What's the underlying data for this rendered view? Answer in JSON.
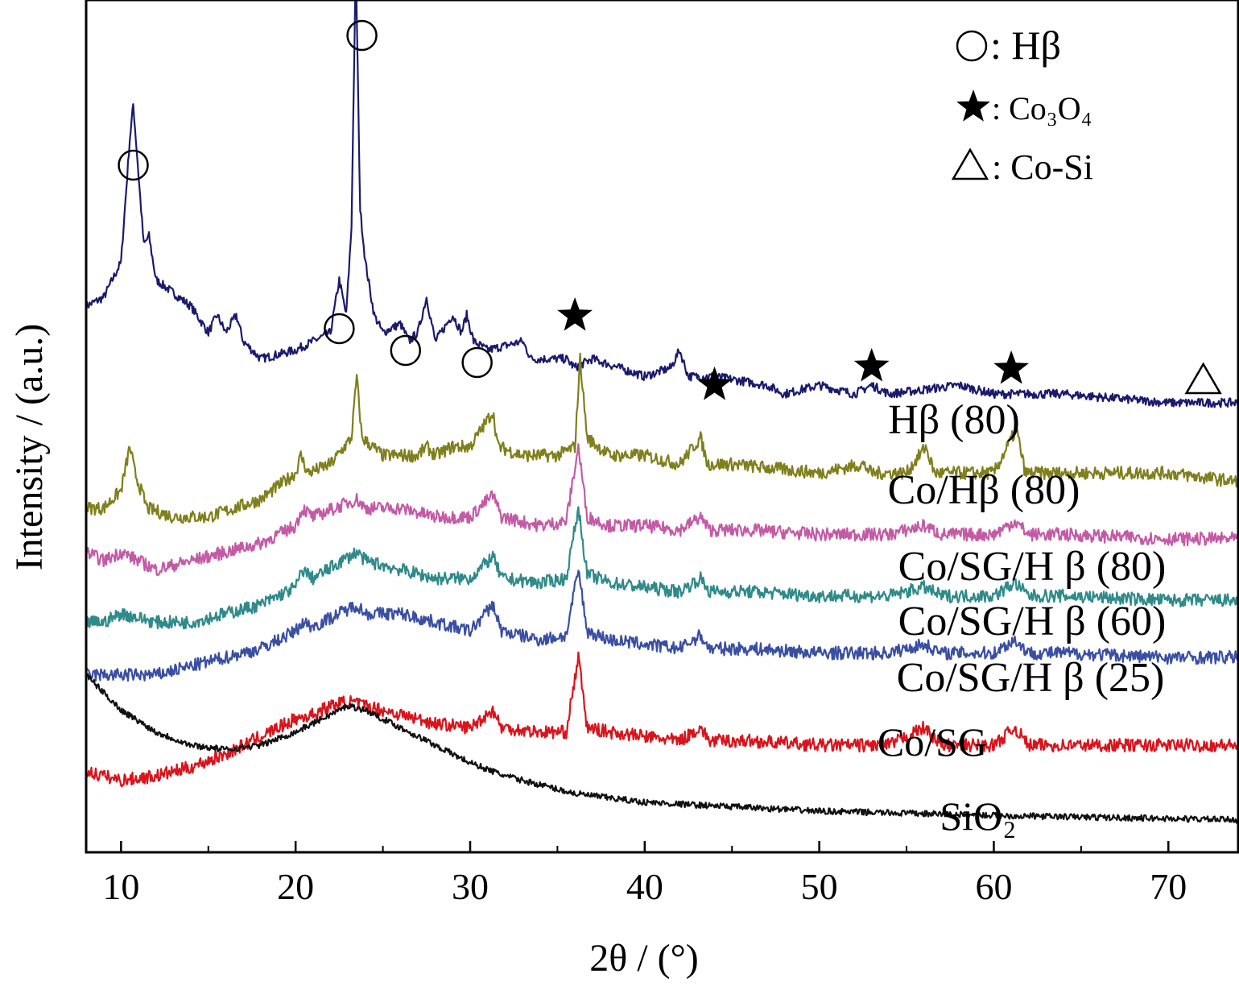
{
  "chart_data": {
    "type": "line",
    "title": "",
    "xlabel": "2θ / (°)",
    "ylabel": "Intensity / (a.u.)",
    "xlim": [
      8,
      74
    ],
    "x_ticks": [
      10,
      20,
      30,
      40,
      50,
      60,
      70
    ],
    "y_ticks_shown": false,
    "grid": false,
    "legend_placement": "top-right",
    "legend": [
      {
        "symbol": "circle",
        "label": ": Hβ"
      },
      {
        "symbol": "star",
        "label": ": Co₃O₄"
      },
      {
        "symbol": "triangle",
        "label": ": Co-Si"
      }
    ],
    "series": [
      {
        "name": "Hβ (80)",
        "color": "#1a1a6e",
        "baseline_intensity": 54,
        "points": [
          [
            8,
            61
          ],
          [
            9,
            62
          ],
          [
            10,
            66
          ],
          [
            10.5,
            80
          ],
          [
            10.7,
            84
          ],
          [
            11,
            76
          ],
          [
            11.3,
            68
          ],
          [
            11.6,
            69
          ],
          [
            12,
            64
          ],
          [
            14,
            61
          ],
          [
            15,
            58
          ],
          [
            15.5,
            60
          ],
          [
            16,
            58
          ],
          [
            16.6,
            60
          ],
          [
            17,
            57
          ],
          [
            18,
            55
          ],
          [
            20,
            56
          ],
          [
            22,
            58
          ],
          [
            22.5,
            64
          ],
          [
            22.9,
            60
          ],
          [
            23.2,
            70
          ],
          [
            23.45,
            100
          ],
          [
            23.7,
            72
          ],
          [
            24,
            66
          ],
          [
            24.5,
            60
          ],
          [
            25,
            58
          ],
          [
            26,
            59
          ],
          [
            26.5,
            57
          ],
          [
            27,
            58
          ],
          [
            27.5,
            62
          ],
          [
            28,
            57
          ],
          [
            29,
            60
          ],
          [
            29.5,
            58
          ],
          [
            29.8,
            60
          ],
          [
            30.2,
            57
          ],
          [
            31,
            56
          ],
          [
            33,
            57
          ],
          [
            33.5,
            55
          ],
          [
            35.5,
            55
          ],
          [
            36,
            54
          ],
          [
            37,
            55
          ],
          [
            40,
            53
          ],
          [
            41.5,
            54
          ],
          [
            42,
            56
          ],
          [
            42.5,
            53
          ],
          [
            44,
            53
          ],
          [
            47,
            52
          ],
          [
            48,
            51
          ],
          [
            50,
            52
          ],
          [
            52,
            51
          ],
          [
            53,
            52
          ],
          [
            54,
            51
          ],
          [
            58,
            52
          ],
          [
            60,
            51
          ],
          [
            63,
            51
          ],
          [
            64,
            51
          ],
          [
            70,
            50
          ],
          [
            74,
            50
          ]
        ]
      },
      {
        "name": "Co/Hβ (80)",
        "color": "#7f7f1c",
        "baseline_intensity": 42,
        "points": [
          [
            8,
            38
          ],
          [
            9,
            38
          ],
          [
            10,
            40
          ],
          [
            10.5,
            45
          ],
          [
            10.8,
            42
          ],
          [
            11.5,
            38
          ],
          [
            13,
            37
          ],
          [
            15,
            37
          ],
          [
            18,
            39
          ],
          [
            20,
            42
          ],
          [
            20.3,
            44
          ],
          [
            20.7,
            42
          ],
          [
            22,
            43
          ],
          [
            23.2,
            46
          ],
          [
            23.5,
            53
          ],
          [
            23.8,
            46
          ],
          [
            25,
            44
          ],
          [
            27,
            44
          ],
          [
            27.5,
            45
          ],
          [
            28,
            44
          ],
          [
            29,
            45
          ],
          [
            30,
            45
          ],
          [
            31.3,
            49
          ],
          [
            31.6,
            45
          ],
          [
            33,
            44
          ],
          [
            35,
            44
          ],
          [
            36,
            45
          ],
          [
            36.3,
            55
          ],
          [
            36.7,
            46
          ],
          [
            38,
            44
          ],
          [
            40,
            44
          ],
          [
            42,
            43
          ],
          [
            43.2,
            46
          ],
          [
            43.6,
            43
          ],
          [
            45,
            43
          ],
          [
            50,
            42
          ],
          [
            52.5,
            43
          ],
          [
            53,
            42
          ],
          [
            55,
            42
          ],
          [
            56.1,
            45
          ],
          [
            56.6,
            42
          ],
          [
            60,
            42
          ],
          [
            61.3,
            47
          ],
          [
            61.8,
            42
          ],
          [
            63,
            42
          ],
          [
            70,
            42
          ],
          [
            74,
            41
          ]
        ]
      },
      {
        "name": "Co/SG/H β (80)",
        "color": "#c45aa6",
        "baseline_intensity": 36,
        "points": [
          [
            8,
            33
          ],
          [
            9,
            32
          ],
          [
            10,
            33
          ],
          [
            12,
            31
          ],
          [
            14,
            32
          ],
          [
            16,
            33
          ],
          [
            18,
            34
          ],
          [
            20,
            36
          ],
          [
            20.4,
            38
          ],
          [
            21,
            37
          ],
          [
            23.5,
            39
          ],
          [
            24,
            38
          ],
          [
            26,
            38
          ],
          [
            28,
            37
          ],
          [
            30,
            37
          ],
          [
            31.3,
            39.5
          ],
          [
            31.8,
            37
          ],
          [
            34,
            36
          ],
          [
            35.5,
            36.5
          ],
          [
            36.2,
            45
          ],
          [
            36.7,
            37
          ],
          [
            38,
            36
          ],
          [
            40,
            36
          ],
          [
            42,
            35.5
          ],
          [
            43.2,
            37
          ],
          [
            43.7,
            35.5
          ],
          [
            46,
            35.5
          ],
          [
            50,
            35
          ],
          [
            54,
            35
          ],
          [
            56,
            36
          ],
          [
            57,
            35
          ],
          [
            60,
            35
          ],
          [
            61.2,
            36.5
          ],
          [
            62,
            35
          ],
          [
            64,
            35
          ],
          [
            70,
            34.5
          ],
          [
            74,
            34.5
          ]
        ]
      },
      {
        "name": "Co/SG/H β (60)",
        "color": "#2f8a8a",
        "baseline_intensity": 29,
        "points": [
          [
            8,
            25
          ],
          [
            9,
            25
          ],
          [
            10,
            26
          ],
          [
            12,
            25
          ],
          [
            14,
            25
          ],
          [
            16,
            26
          ],
          [
            18,
            27
          ],
          [
            20,
            29
          ],
          [
            20.4,
            31
          ],
          [
            21,
            30
          ],
          [
            23.5,
            33
          ],
          [
            24,
            32
          ],
          [
            26,
            31
          ],
          [
            28,
            30
          ],
          [
            30,
            30
          ],
          [
            31.3,
            32.5
          ],
          [
            31.8,
            30
          ],
          [
            34,
            29.5
          ],
          [
            35.5,
            30
          ],
          [
            36.2,
            38
          ],
          [
            36.7,
            30.5
          ],
          [
            38,
            29.5
          ],
          [
            40,
            29
          ],
          [
            42,
            28.5
          ],
          [
            43.2,
            30
          ],
          [
            43.7,
            28.5
          ],
          [
            46,
            28.5
          ],
          [
            50,
            28
          ],
          [
            54,
            28
          ],
          [
            56,
            29
          ],
          [
            57,
            28
          ],
          [
            60,
            28
          ],
          [
            61.2,
            29.5
          ],
          [
            62,
            28
          ],
          [
            64,
            28
          ],
          [
            70,
            27.5
          ],
          [
            74,
            27.5
          ]
        ]
      },
      {
        "name": "Co/SG/H β (25)",
        "color": "#3a4fa3",
        "baseline_intensity": 22,
        "points": [
          [
            8,
            19
          ],
          [
            9,
            19
          ],
          [
            10,
            19
          ],
          [
            12,
            19
          ],
          [
            14,
            20
          ],
          [
            16,
            21
          ],
          [
            18,
            22
          ],
          [
            20,
            24
          ],
          [
            20.4,
            25
          ],
          [
            21,
            24.5
          ],
          [
            23.5,
            27
          ],
          [
            24,
            26
          ],
          [
            26,
            26
          ],
          [
            28,
            25
          ],
          [
            30,
            24
          ],
          [
            31.3,
            27
          ],
          [
            31.8,
            24
          ],
          [
            34,
            23
          ],
          [
            35.5,
            23.5
          ],
          [
            36.2,
            31
          ],
          [
            36.7,
            24
          ],
          [
            38,
            23
          ],
          [
            40,
            22.5
          ],
          [
            42,
            22
          ],
          [
            43.2,
            23.5
          ],
          [
            43.7,
            22
          ],
          [
            46,
            22
          ],
          [
            50,
            21.5
          ],
          [
            54,
            21.5
          ],
          [
            56,
            22.5
          ],
          [
            57,
            21.5
          ],
          [
            60,
            21.5
          ],
          [
            61.2,
            23
          ],
          [
            62,
            21.5
          ],
          [
            64,
            21.5
          ],
          [
            70,
            21
          ],
          [
            74,
            21
          ]
        ]
      },
      {
        "name": "Co/SG",
        "color": "#d9141c",
        "baseline_intensity": 10,
        "points": [
          [
            8,
            8
          ],
          [
            10,
            7
          ],
          [
            12,
            7.5
          ],
          [
            14,
            8.5
          ],
          [
            16,
            10
          ],
          [
            18,
            12
          ],
          [
            20,
            14
          ],
          [
            21,
            14.5
          ],
          [
            22,
            15.5
          ],
          [
            23,
            16
          ],
          [
            24,
            15.5
          ],
          [
            26,
            14.5
          ],
          [
            28,
            13.5
          ],
          [
            30,
            13
          ],
          [
            31.3,
            15
          ],
          [
            31.8,
            13
          ],
          [
            34,
            12.5
          ],
          [
            35.5,
            12.5
          ],
          [
            36.2,
            21
          ],
          [
            36.7,
            13
          ],
          [
            38,
            12.5
          ],
          [
            40,
            12
          ],
          [
            42,
            11.5
          ],
          [
            43.2,
            13
          ],
          [
            43.7,
            11.5
          ],
          [
            46,
            11.5
          ],
          [
            50,
            11
          ],
          [
            54,
            11
          ],
          [
            56,
            13
          ],
          [
            57,
            11
          ],
          [
            60,
            11
          ],
          [
            61.2,
            13
          ],
          [
            62,
            11
          ],
          [
            64,
            11
          ],
          [
            70,
            11
          ],
          [
            74,
            11
          ]
        ]
      },
      {
        "name": "SiO₂",
        "color": "#111111",
        "baseline_intensity": 2,
        "points": [
          [
            8,
            19
          ],
          [
            9,
            17
          ],
          [
            10,
            15
          ],
          [
            12,
            12.5
          ],
          [
            14,
            11
          ],
          [
            16,
            10.5
          ],
          [
            18,
            11
          ],
          [
            20,
            12.5
          ],
          [
            22,
            14.5
          ],
          [
            23,
            15.5
          ],
          [
            24,
            15
          ],
          [
            26,
            13
          ],
          [
            28,
            11
          ],
          [
            30,
            9
          ],
          [
            32,
            7.5
          ],
          [
            34,
            6.5
          ],
          [
            36,
            5.5
          ],
          [
            40,
            4.5
          ],
          [
            45,
            4
          ],
          [
            50,
            3.5
          ],
          [
            60,
            3
          ],
          [
            74,
            2.5
          ]
        ]
      }
    ],
    "curve_labels": [
      {
        "text": "Hβ (80)",
        "series": 0
      },
      {
        "text": "Co/Hβ (80)",
        "series": 1
      },
      {
        "text": "Co/SG/H β (80)",
        "series": 2
      },
      {
        "text": "Co/SG/H β (60)",
        "series": 3
      },
      {
        "text": "Co/SG/H β (25)",
        "series": 4
      },
      {
        "text": "Co/SG",
        "series": 5
      },
      {
        "text": "SiO₂",
        "series": 6
      }
    ],
    "peak_markers": [
      {
        "symbol": "circle",
        "x": 10.7
      },
      {
        "symbol": "circle",
        "x": 23.8
      },
      {
        "symbol": "circle",
        "x": 22.5
      },
      {
        "symbol": "circle",
        "x": 26.3
      },
      {
        "symbol": "circle",
        "x": 30.4
      },
      {
        "symbol": "star",
        "x": 36.0
      },
      {
        "symbol": "star",
        "x": 44.0
      },
      {
        "symbol": "star",
        "x": 53.0
      },
      {
        "symbol": "star",
        "x": 61.0
      },
      {
        "symbol": "triangle",
        "x": 72.0
      }
    ]
  }
}
